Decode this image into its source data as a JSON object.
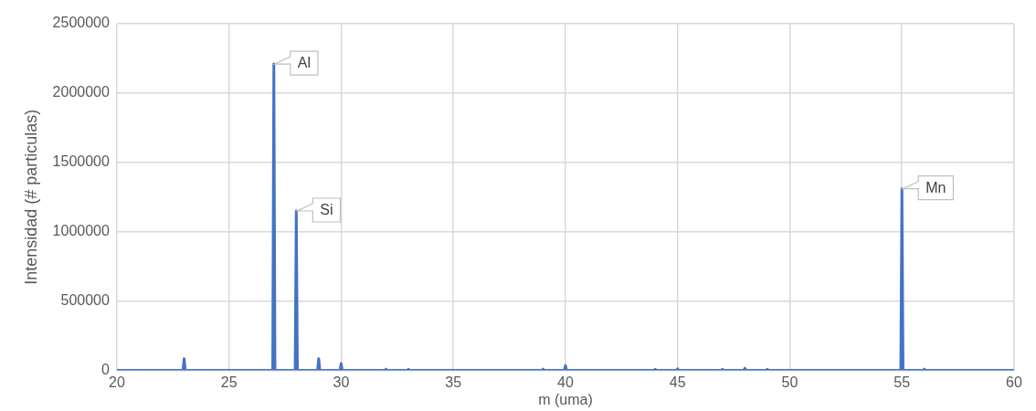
{
  "chart_data": {
    "type": "line",
    "xlabel": "m (uma)",
    "ylabel": "Intensidad (# particulas)",
    "x": [
      20,
      22.95,
      23,
      23.05,
      26.95,
      27,
      27.05,
      27.95,
      28,
      28.05,
      28.95,
      29,
      29.05,
      29.95,
      30,
      30.05,
      31.95,
      32,
      32.05,
      32.95,
      33,
      33.05,
      38.95,
      39,
      39.05,
      39.95,
      40,
      40.05,
      43.95,
      44,
      44.05,
      44.95,
      45,
      45.05,
      46.95,
      47,
      47.05,
      47.95,
      48,
      48.05,
      48.95,
      49,
      49.05,
      54.95,
      55,
      55.05,
      55.95,
      56,
      56.05,
      60
    ],
    "series": [
      {
        "color": "#4472c4",
        "values": [
          0,
          0,
          85000,
          0,
          0,
          2210000,
          0,
          0,
          1150000,
          0,
          0,
          85000,
          0,
          0,
          50000,
          0,
          0,
          10000,
          0,
          0,
          8000,
          0,
          0,
          10000,
          0,
          0,
          35000,
          0,
          0,
          8000,
          0,
          0,
          12000,
          0,
          0,
          8000,
          0,
          0,
          15000,
          0,
          0,
          8000,
          0,
          0,
          1310000,
          0,
          0,
          10000,
          0,
          0
        ]
      }
    ],
    "xlim": [
      20,
      60
    ],
    "xticks": [
      20,
      25,
      30,
      35,
      40,
      45,
      50,
      55,
      60
    ],
    "ylim": [
      0,
      2500000
    ],
    "yticks": [
      0,
      500000,
      1000000,
      1500000,
      2000000,
      2500000
    ],
    "grid": true,
    "legend": false,
    "marker": "none",
    "line_style": "solid",
    "annotations": [
      {
        "text": "Al",
        "x": 27,
        "y": 2210000
      },
      {
        "text": "Si",
        "x": 28,
        "y": 1150000
      },
      {
        "text": "Mn",
        "x": 55,
        "y": 1310000
      }
    ]
  }
}
